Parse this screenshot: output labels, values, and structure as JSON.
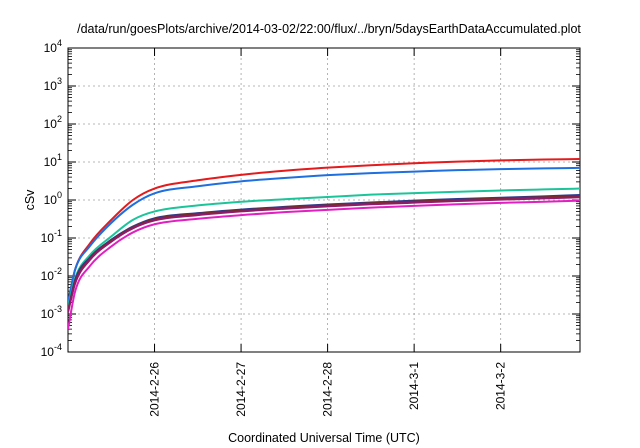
{
  "chart_data": {
    "type": "line",
    "title": "/data/run/goesPlots/archive/2014-03-02/22:00/flux/../bryn/5daysEarthDataAccumulated.plot",
    "xlabel": "Coordinated Universal Time (UTC)",
    "ylabel": "cSv",
    "yscale": "log",
    "ylim": [
      0.0001,
      10000
    ],
    "xlim": [
      "2014-02-25T00:00",
      "2014-03-02T22:00"
    ],
    "x_ticks": [
      "2014-2-26",
      "2014-2-27",
      "2014-2-28",
      "2014-3-1",
      "2014-3-2"
    ],
    "x_tick_dates": [
      "2014-02-26",
      "2014-02-27",
      "2014-02-28",
      "2014-03-01",
      "2014-03-02"
    ],
    "y_ticks": [
      {
        "base": "10",
        "exp": "-4",
        "value": 0.0001
      },
      {
        "base": "10",
        "exp": "-3",
        "value": 0.001
      },
      {
        "base": "10",
        "exp": "-2",
        "value": 0.01
      },
      {
        "base": "10",
        "exp": "-1",
        "value": 0.1
      },
      {
        "base": "10",
        "exp": "0",
        "value": 1
      },
      {
        "base": "10",
        "exp": "1",
        "value": 10
      },
      {
        "base": "10",
        "exp": "2",
        "value": 100
      },
      {
        "base": "10",
        "exp": "3",
        "value": 1000
      },
      {
        "base": "10",
        "exp": "4",
        "value": 10000
      }
    ],
    "grid": true,
    "x": [
      "2014-02-25T00:00",
      "2014-02-25T02:00",
      "2014-02-25T06:00",
      "2014-02-25T12:00",
      "2014-02-25T18:00",
      "2014-02-26T00:00",
      "2014-02-26T12:00",
      "2014-02-27T00:00",
      "2014-02-27T12:00",
      "2014-02-28T00:00",
      "2014-02-28T12:00",
      "2014-03-01T00:00",
      "2014-03-01T12:00",
      "2014-03-02T00:00",
      "2014-03-02T12:00",
      "2014-03-02T22:00"
    ],
    "series": [
      {
        "color": "#e41a1c",
        "values": [
          0.002,
          0.015,
          0.07,
          0.3,
          1.0,
          2.0,
          3.3,
          4.6,
          5.9,
          7.1,
          8.2,
          9.3,
          10.2,
          11.0,
          11.6,
          12.0
        ]
      },
      {
        "color": "#1f6fde",
        "values": [
          0.002,
          0.015,
          0.06,
          0.25,
          0.75,
          1.5,
          2.3,
          3.1,
          3.8,
          4.5,
          5.1,
          5.6,
          6.1,
          6.5,
          6.8,
          7.0
        ]
      },
      {
        "color": "#1cc49a",
        "values": [
          0.0015,
          0.009,
          0.035,
          0.11,
          0.3,
          0.5,
          0.72,
          0.9,
          1.05,
          1.2,
          1.38,
          1.52,
          1.65,
          1.78,
          1.9,
          2.0
        ]
      },
      {
        "color": "#2a3a8c",
        "values": [
          0.0012,
          0.008,
          0.03,
          0.09,
          0.2,
          0.33,
          0.45,
          0.56,
          0.66,
          0.76,
          0.86,
          0.96,
          1.06,
          1.15,
          1.25,
          1.35
        ]
      },
      {
        "color": "#7a2b2b",
        "values": [
          0.0012,
          0.007,
          0.028,
          0.085,
          0.19,
          0.31,
          0.43,
          0.53,
          0.63,
          0.72,
          0.82,
          0.91,
          1.0,
          1.1,
          1.18,
          1.27
        ]
      },
      {
        "color": "#8e1b6b",
        "values": [
          0.0011,
          0.0065,
          0.026,
          0.08,
          0.18,
          0.29,
          0.4,
          0.5,
          0.59,
          0.68,
          0.77,
          0.85,
          0.94,
          1.02,
          1.1,
          1.18
        ]
      },
      {
        "color": "#e020c0",
        "values": [
          0.0004,
          0.004,
          0.018,
          0.06,
          0.14,
          0.23,
          0.32,
          0.4,
          0.48,
          0.55,
          0.63,
          0.7,
          0.77,
          0.84,
          0.9,
          0.96
        ]
      }
    ]
  }
}
